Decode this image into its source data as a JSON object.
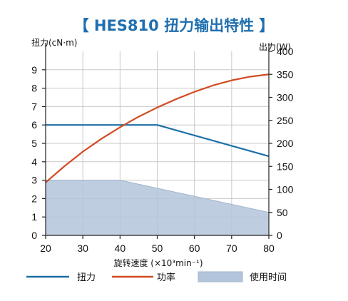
{
  "chart_data": {
    "type": "line",
    "title": "【 HES810 扭力输出特性 】",
    "xlabel": "旋转速度 (×10³min⁻¹)",
    "ylabel_left": "扭力(cN·m)",
    "ylabel_right": "出力(W)",
    "xlim": [
      20,
      80
    ],
    "ylim_left": [
      0,
      10
    ],
    "ylim_right": [
      0,
      400
    ],
    "x_ticks": [
      20,
      30,
      40,
      50,
      60,
      70,
      80
    ],
    "y_left_ticks": [
      0,
      1,
      2,
      3,
      4,
      5,
      6,
      7,
      8,
      9
    ],
    "y_right_ticks": [
      0,
      50,
      100,
      150,
      200,
      250,
      300,
      350,
      400
    ],
    "grid": true,
    "legend_position": "bottom",
    "series": [
      {
        "name": "扭力",
        "axis": "left",
        "style": "line",
        "color": "#1a6fa8",
        "x": [
          20,
          50,
          80
        ],
        "y": [
          6.0,
          6.0,
          4.3
        ]
      },
      {
        "name": "功率",
        "axis": "right",
        "style": "line",
        "color": "#d24a24",
        "x": [
          20,
          25,
          30,
          35,
          40,
          45,
          50,
          55,
          60,
          65,
          70,
          75,
          80
        ],
        "y": [
          115,
          150,
          182,
          210,
          235,
          258,
          278,
          296,
          312,
          326,
          337,
          345,
          350
        ]
      },
      {
        "name": "使用时间",
        "axis": "left",
        "style": "area",
        "color": "#b3c5da",
        "x": [
          20,
          40,
          80
        ],
        "y": [
          3.0,
          3.0,
          1.25
        ]
      }
    ]
  }
}
